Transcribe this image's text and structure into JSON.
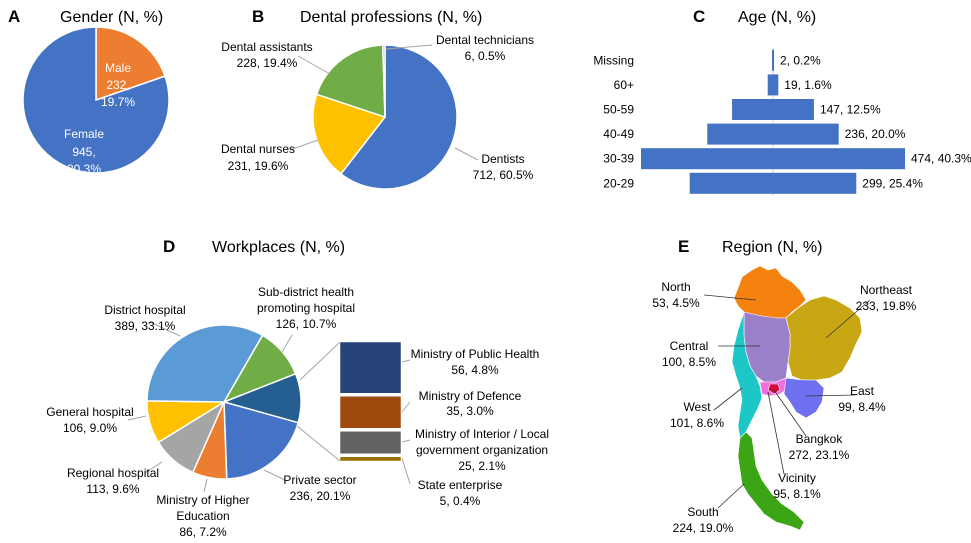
{
  "chart_data": [
    {
      "id": "A",
      "type": "pie",
      "panel_letter": "A",
      "title": "Gender (N, %)",
      "slices": [
        {
          "name": "Male",
          "count": "232,",
          "pct": "19.7%",
          "value": 19.7,
          "color": "#ED7D31"
        },
        {
          "name": "Female",
          "count": "945,",
          "pct": "80.3%",
          "value": 80.3,
          "color": "#4472C4"
        }
      ]
    },
    {
      "id": "B",
      "type": "pie",
      "panel_letter": "B",
      "title": "Dental professions (N, %)",
      "slices": [
        {
          "name": "Dentists",
          "count": "712, 60.5%",
          "value": 60.5,
          "color": "#4472C4"
        },
        {
          "name": "Dental nurses",
          "count": "231, 19.6%",
          "value": 19.6,
          "color": "#FFC000"
        },
        {
          "name": "Dental assistants",
          "count": "228, 19.4%",
          "value": 19.4,
          "color": "#70AD47"
        },
        {
          "name": "Dental technicians",
          "count": "6, 0.5%",
          "value": 0.5,
          "color": "#A5A5A5"
        }
      ]
    },
    {
      "id": "C",
      "type": "bar",
      "panel_letter": "C",
      "title": "Age (N, %)",
      "orientation": "horizontal-centered",
      "color": "#4472C4",
      "categories": [
        "Missing",
        "60+",
        "50-59",
        "40-49",
        "30-39",
        "20-29"
      ],
      "values": [
        2,
        19,
        147,
        236,
        474,
        299
      ],
      "labels": [
        "2, 0.2%",
        "19, 1.6%",
        "147, 12.5%",
        "236, 20.0%",
        "474, 40.3%",
        "299, 25.4%"
      ]
    },
    {
      "id": "D",
      "type": "pie",
      "panel_letter": "D",
      "title": "Workplaces (N, %)",
      "slices": [
        {
          "name": "Sub-district health promoting hospital",
          "lines": [
            "Sub-district health",
            "promoting hospital",
            "126, 10.7%"
          ],
          "value": 10.7,
          "color": "#70AD47"
        },
        {
          "name": "Others (breakdown)",
          "lines": [],
          "value": 10.3,
          "color": "#255E91"
        },
        {
          "name": "Private sector",
          "lines": [
            "Private sector",
            "236, 20.1%"
          ],
          "value": 20.1,
          "color": "#4472C4"
        },
        {
          "name": "Ministry of Higher Education",
          "lines": [
            "Ministry of Higher",
            "Education",
            "86, 7.2%"
          ],
          "value": 7.2,
          "color": "#ED7D31"
        },
        {
          "name": "Regional hospital",
          "lines": [
            "Regional hospital",
            "113, 9.6%"
          ],
          "value": 9.6,
          "color": "#A5A5A5"
        },
        {
          "name": "General hospital",
          "lines": [
            "General hospital",
            "106, 9.0%"
          ],
          "value": 9.0,
          "color": "#FFC000"
        },
        {
          "name": "District hospital",
          "lines": [
            "District hospital",
            "389, 33.1%"
          ],
          "value": 33.1,
          "color": "#5B9BD5"
        }
      ],
      "breakdown": [
        {
          "lines": [
            "Ministry of Public Health",
            "56, 4.8%"
          ],
          "value": 4.8,
          "color": "#264478"
        },
        {
          "lines": [
            "Ministry of Defence",
            "35, 3.0%"
          ],
          "value": 3.0,
          "color": "#9E480E"
        },
        {
          "lines": [
            "Ministry of Interior / Local",
            "government organization",
            "25, 2.1%"
          ],
          "value": 2.1,
          "color": "#636363"
        },
        {
          "lines": [
            "State enterprise",
            "5, 0.4%"
          ],
          "value": 0.4,
          "color": "#997300"
        }
      ]
    },
    {
      "id": "E",
      "type": "map",
      "panel_letter": "E",
      "title": "Region (N, %)",
      "regions": [
        {
          "name": "North",
          "value": "53, 4.5%",
          "color": "#F5820F"
        },
        {
          "name": "Northeast",
          "value": "233, 19.8%",
          "color": "#C9A714"
        },
        {
          "name": "Central",
          "value": "100, 8.5%",
          "color": "#9A80C8"
        },
        {
          "name": "East",
          "value": "99, 8.4%",
          "color": "#6F70F0"
        },
        {
          "name": "West",
          "value": "101, 8.6%",
          "color": "#1EC7C7"
        },
        {
          "name": "Bangkok",
          "value": "272, 23.1%",
          "color": "#D10F3C"
        },
        {
          "name": "Vicinity",
          "value": "95, 8.1%",
          "color": "#F26DE0"
        },
        {
          "name": "South",
          "value": "224, 19.0%",
          "color": "#3BA515"
        }
      ]
    }
  ]
}
